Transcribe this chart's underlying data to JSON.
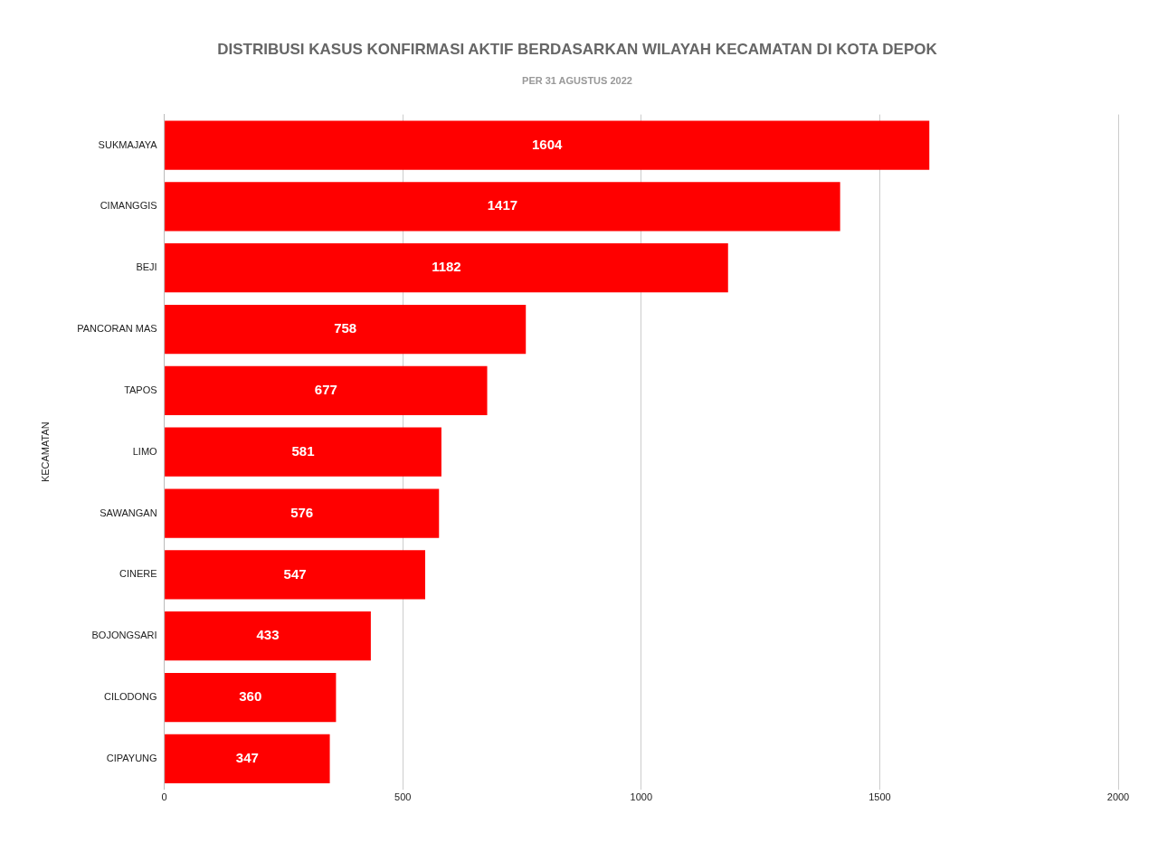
{
  "chart_data": {
    "type": "bar",
    "orientation": "horizontal",
    "title": "DISTRIBUSI KASUS KONFIRMASI AKTIF BERDASARKAN WILAYAH KECAMATAN DI KOTA DEPOK",
    "subtitle": "PER 31 AGUSTUS 2022",
    "ylabel": "KECAMATAN",
    "categories": [
      "SUKMAJAYA",
      "CIMANGGIS",
      "BEJI",
      "PANCORAN MAS",
      "TAPOS",
      "LIMO",
      "SAWANGAN",
      "CINERE",
      "BOJONGSARI",
      "CILODONG",
      "CIPAYUNG"
    ],
    "values": [
      1604,
      1417,
      1182,
      758,
      677,
      581,
      576,
      547,
      433,
      360,
      347
    ],
    "color": "#ff0000",
    "xlim": [
      0,
      2000
    ],
    "xticks": [
      0,
      500,
      1000,
      1500,
      2000
    ],
    "grid": "x",
    "data_labels": true,
    "legend": false
  }
}
